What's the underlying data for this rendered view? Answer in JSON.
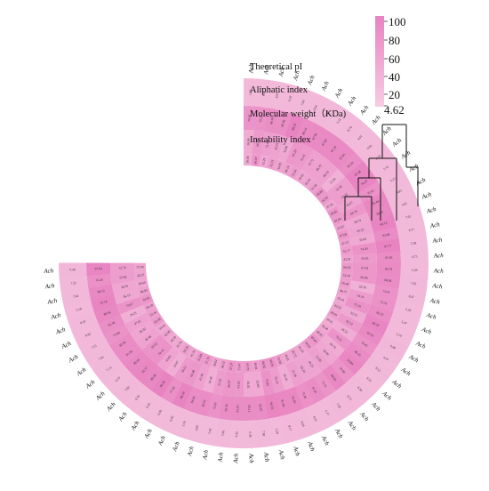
{
  "chart_data": {
    "type": "heatmap",
    "layout": "circular",
    "rings": [
      {
        "name": "Theoretical pI",
        "order": 1
      },
      {
        "name": "Aliphatic index",
        "order": 2
      },
      {
        "name": "Molecular weight（KDa)",
        "order": 3
      },
      {
        "name": "Instability index",
        "order": 4
      }
    ],
    "colorbar": {
      "min_label": "4.62",
      "ticks": [
        "100",
        "80",
        "60",
        "40",
        "20"
      ],
      "min": 4.62,
      "max": 100,
      "color_low": "#f6cce2",
      "color_high": "#e883c1"
    },
    "leaf_label_prefix": "Ach",
    "leaf_count": 60,
    "value_ranges": {
      "Theoretical pI": [
        4.62,
        9.5
      ],
      "Aliphatic index": [
        70,
        100
      ],
      "Molecular weight（KDa)": [
        20,
        75
      ],
      "Instability index": [
        30,
        70
      ]
    },
    "dendrogram": "clustering tree shown at the open end of the ring"
  }
}
